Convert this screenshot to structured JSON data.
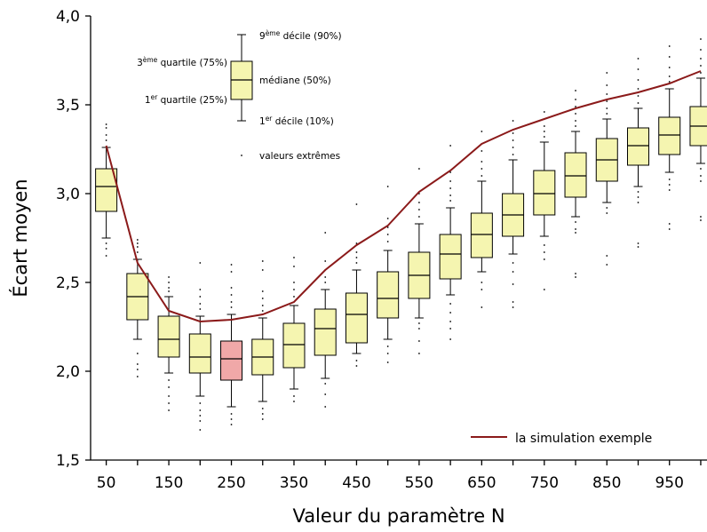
{
  "chart_data": {
    "type": "box",
    "xlabel": "Valeur du paramètre N",
    "ylabel": "Écart moyen",
    "ylim": [
      1.5,
      4.0
    ],
    "y_ticks": [
      "1,5",
      "2,0",
      "2,5",
      "3,0",
      "3,5",
      "4,0"
    ],
    "x_ticks": [
      "50",
      "150",
      "250",
      "350",
      "450",
      "550",
      "650",
      "750",
      "850",
      "950"
    ],
    "categories": [
      50,
      100,
      150,
      200,
      250,
      300,
      350,
      400,
      450,
      500,
      550,
      600,
      650,
      700,
      750,
      800,
      850,
      900,
      950,
      1000
    ],
    "boxes": [
      {
        "x": 50,
        "p10": 2.75,
        "q1": 2.9,
        "median": 3.04,
        "q3": 3.14,
        "p90": 3.26,
        "outliers": [
          3.39,
          3.37,
          3.33,
          3.3,
          2.72,
          2.69,
          2.65
        ]
      },
      {
        "x": 100,
        "p10": 2.18,
        "q1": 2.29,
        "median": 2.42,
        "q3": 2.55,
        "p90": 2.63,
        "outliers": [
          2.74,
          2.72,
          2.7,
          2.67,
          2.1,
          2.04,
          2.01,
          1.97
        ]
      },
      {
        "x": 150,
        "p10": 1.99,
        "q1": 2.08,
        "median": 2.18,
        "q3": 2.31,
        "p90": 2.42,
        "outliers": [
          2.53,
          2.5,
          2.47,
          2.45,
          1.95,
          1.91,
          1.86,
          1.82,
          1.78
        ]
      },
      {
        "x": 200,
        "p10": 1.86,
        "q1": 1.99,
        "median": 2.08,
        "q3": 2.21,
        "p90": 2.31,
        "outliers": [
          2.61,
          2.46,
          2.42,
          2.38,
          2.35,
          1.82,
          1.78,
          1.75,
          1.72,
          1.67
        ]
      },
      {
        "x": 250,
        "p10": 1.8,
        "q1": 1.95,
        "median": 2.07,
        "q3": 2.17,
        "p90": 2.32,
        "highlight": true,
        "outliers": [
          2.6,
          2.56,
          2.47,
          2.43,
          2.39,
          2.36,
          1.76,
          1.73,
          1.7
        ]
      },
      {
        "x": 300,
        "p10": 1.83,
        "q1": 1.98,
        "median": 2.08,
        "q3": 2.18,
        "p90": 2.3,
        "outliers": [
          2.62,
          2.57,
          2.45,
          2.41,
          2.37,
          2.34,
          1.79,
          1.76,
          1.73
        ]
      },
      {
        "x": 350,
        "p10": 1.9,
        "q1": 2.02,
        "median": 2.15,
        "q3": 2.27,
        "p90": 2.37,
        "outliers": [
          2.64,
          2.59,
          2.5,
          2.46,
          2.42,
          1.86,
          1.83
        ]
      },
      {
        "x": 400,
        "p10": 1.96,
        "q1": 2.09,
        "median": 2.24,
        "q3": 2.35,
        "p90": 2.46,
        "outliers": [
          2.78,
          2.62,
          2.57,
          2.53,
          2.5,
          1.93,
          1.87,
          1.8
        ]
      },
      {
        "x": 450,
        "p10": 2.1,
        "q1": 2.16,
        "median": 2.32,
        "q3": 2.44,
        "p90": 2.57,
        "outliers": [
          2.94,
          2.72,
          2.67,
          2.64,
          2.61,
          2.06,
          2.03
        ]
      },
      {
        "x": 500,
        "p10": 2.18,
        "q1": 2.3,
        "median": 2.41,
        "q3": 2.56,
        "p90": 2.68,
        "outliers": [
          3.04,
          2.86,
          2.81,
          2.77,
          2.73,
          2.14,
          2.1,
          2.05
        ]
      },
      {
        "x": 550,
        "p10": 2.3,
        "q1": 2.41,
        "median": 2.54,
        "q3": 2.67,
        "p90": 2.83,
        "outliers": [
          3.14,
          3.0,
          2.95,
          2.91,
          2.87,
          2.27,
          2.24,
          2.17,
          2.1
        ]
      },
      {
        "x": 600,
        "p10": 2.43,
        "q1": 2.52,
        "median": 2.66,
        "q3": 2.77,
        "p90": 2.92,
        "outliers": [
          3.27,
          3.12,
          3.07,
          3.03,
          2.99,
          2.96,
          2.38,
          2.33,
          2.28,
          2.24,
          2.18
        ]
      },
      {
        "x": 650,
        "p10": 2.56,
        "q1": 2.64,
        "median": 2.77,
        "q3": 2.89,
        "p90": 3.07,
        "outliers": [
          3.35,
          3.24,
          3.18,
          3.14,
          3.1,
          2.5,
          2.46,
          2.36
        ]
      },
      {
        "x": 700,
        "p10": 2.66,
        "q1": 2.76,
        "median": 2.88,
        "q3": 3.0,
        "p90": 3.19,
        "outliers": [
          3.41,
          3.34,
          3.3,
          3.26,
          3.22,
          2.61,
          2.56,
          2.49,
          2.39,
          2.36
        ]
      },
      {
        "x": 750,
        "p10": 2.76,
        "q1": 2.88,
        "median": 3.0,
        "q3": 3.13,
        "p90": 3.29,
        "outliers": [
          3.46,
          3.42,
          3.38,
          3.35,
          3.32,
          2.71,
          2.67,
          2.63,
          2.46
        ]
      },
      {
        "x": 800,
        "p10": 2.87,
        "q1": 2.98,
        "median": 3.1,
        "q3": 3.23,
        "p90": 3.35,
        "outliers": [
          3.58,
          3.53,
          3.49,
          3.45,
          3.41,
          3.38,
          2.84,
          2.8,
          2.78,
          2.55,
          2.53
        ]
      },
      {
        "x": 850,
        "p10": 2.95,
        "q1": 3.07,
        "median": 3.19,
        "q3": 3.31,
        "p90": 3.42,
        "outliers": [
          3.68,
          3.61,
          3.56,
          3.52,
          3.48,
          3.45,
          2.92,
          2.89,
          2.65,
          2.6
        ]
      },
      {
        "x": 900,
        "p10": 3.04,
        "q1": 3.16,
        "median": 3.27,
        "q3": 3.37,
        "p90": 3.48,
        "outliers": [
          3.76,
          3.7,
          3.64,
          3.59,
          3.55,
          3.51,
          3.01,
          2.98,
          2.95,
          2.72,
          2.7
        ]
      },
      {
        "x": 950,
        "p10": 3.12,
        "q1": 3.22,
        "median": 3.33,
        "q3": 3.43,
        "p90": 3.59,
        "outliers": [
          3.83,
          3.77,
          3.71,
          3.66,
          3.63,
          3.08,
          3.05,
          3.02,
          2.83,
          2.8
        ]
      },
      {
        "x": 1000,
        "p10": 3.17,
        "q1": 3.27,
        "median": 3.38,
        "q3": 3.49,
        "p90": 3.65,
        "outliers": [
          3.87,
          3.81,
          3.76,
          3.72,
          3.68,
          3.14,
          3.1,
          3.07,
          2.87,
          2.85
        ]
      }
    ],
    "series": [
      {
        "name": "la simulation exemple",
        "color": "#8b1a1a",
        "values": [
          3.27,
          2.61,
          2.34,
          2.28,
          2.29,
          2.32,
          2.39,
          2.57,
          2.71,
          2.82,
          3.01,
          3.13,
          3.28,
          3.36,
          3.42,
          3.48,
          3.53,
          3.57,
          3.62,
          3.69
        ]
      }
    ],
    "key": {
      "p90": {
        "prefix": "9",
        "sup": "ème",
        "rest": " décile (90%)"
      },
      "q3": {
        "prefix": "3",
        "sup": "ème",
        "rest": " quartile (75%)"
      },
      "median": {
        "prefix": "",
        "sup": "",
        "rest": "médiane (50%)"
      },
      "q1": {
        "prefix": "1",
        "sup": "er",
        "rest": " quartile (25%)"
      },
      "p10": {
        "prefix": "1",
        "sup": "er",
        "rest": " décile (10%)"
      },
      "outliers": {
        "prefix": "",
        "sup": "",
        "rest": "valeurs extrêmes"
      }
    },
    "legend_position": "bottom-right",
    "grid": false,
    "colors": {
      "box_fill": "#f5f5b0",
      "highlight_fill": "#f0a8a8",
      "line": "#8b1a1a"
    }
  }
}
